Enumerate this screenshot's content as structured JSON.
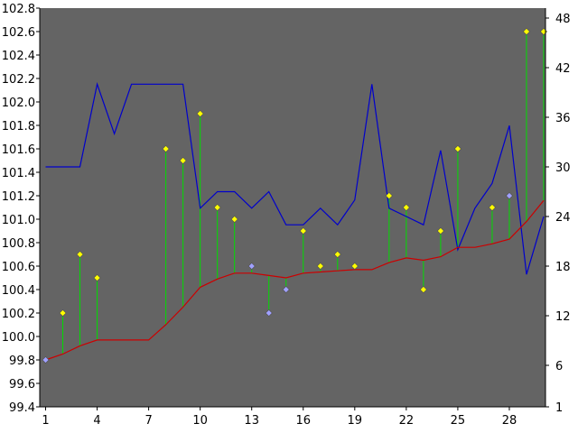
{
  "chart_data": {
    "type": "line",
    "title": "",
    "grid": false,
    "background": "#646464",
    "x_ticks": [
      "1",
      "4",
      "7",
      "10",
      "13",
      "16",
      "19",
      "22",
      "25",
      "28"
    ],
    "left_axis": {
      "ylim": [
        99.4,
        102.8
      ],
      "ticks": [
        "99.4",
        "99.6",
        "99.8",
        "100.0",
        "100.2",
        "100.4",
        "100.6",
        "100.8",
        "101.0",
        "101.2",
        "101.4",
        "101.6",
        "101.8",
        "102.0",
        "102.2",
        "102.4",
        "102.6",
        "102.8"
      ]
    },
    "right_axis": {
      "ticks": [
        "1",
        "6",
        "12",
        "18",
        "24",
        "30",
        "36",
        "42",
        "48"
      ]
    },
    "x": [
      1,
      2,
      3,
      4,
      5,
      6,
      7,
      8,
      9,
      10,
      11,
      12,
      13,
      14,
      15,
      16,
      17,
      18,
      19,
      20,
      21,
      22,
      23,
      24,
      25,
      26,
      27,
      28,
      29,
      30
    ],
    "series": [
      {
        "style": "markers-with-drop-lines",
        "axis": "left",
        "color_up": "#ffff00",
        "color_down": "#a0a0ff",
        "drop_line_color": "#00dd00",
        "values": [
          99.8,
          100.2,
          100.7,
          100.5,
          null,
          null,
          null,
          101.6,
          101.5,
          101.9,
          101.1,
          101.0,
          100.6,
          100.2,
          100.4,
          100.9,
          100.6,
          100.7,
          100.6,
          null,
          101.2,
          101.1,
          100.4,
          100.9,
          101.6,
          null,
          101.1,
          101.2,
          102.6,
          102.6
        ],
        "direction": [
          "down",
          "up",
          "up",
          "up",
          null,
          null,
          null,
          "up",
          "up",
          "up",
          "up",
          "up",
          "down",
          "down",
          "down",
          "up",
          "up",
          "up",
          "up",
          null,
          "up",
          "up",
          "up",
          "up",
          "up",
          null,
          "up",
          "down",
          "up",
          "up"
        ]
      },
      {
        "style": "line",
        "axis": "left",
        "color": "#cc0000",
        "values": [
          99.8,
          99.85,
          99.92,
          99.97,
          99.97,
          99.97,
          99.97,
          100.1,
          100.25,
          100.42,
          100.49,
          100.54,
          100.54,
          100.52,
          100.5,
          100.54,
          100.55,
          100.56,
          100.57,
          100.57,
          100.63,
          100.67,
          100.65,
          100.68,
          100.76,
          100.76,
          100.79,
          100.83,
          100.98,
          101.16
        ]
      },
      {
        "style": "line",
        "axis": "right",
        "color": "#0000cc",
        "values": [
          30,
          30,
          30,
          40,
          34,
          40,
          40,
          40,
          40,
          25,
          27,
          27,
          25,
          27,
          23,
          23,
          25,
          23,
          26,
          40,
          25,
          24,
          23,
          32,
          20,
          25,
          28,
          35,
          17,
          24
        ]
      }
    ]
  }
}
